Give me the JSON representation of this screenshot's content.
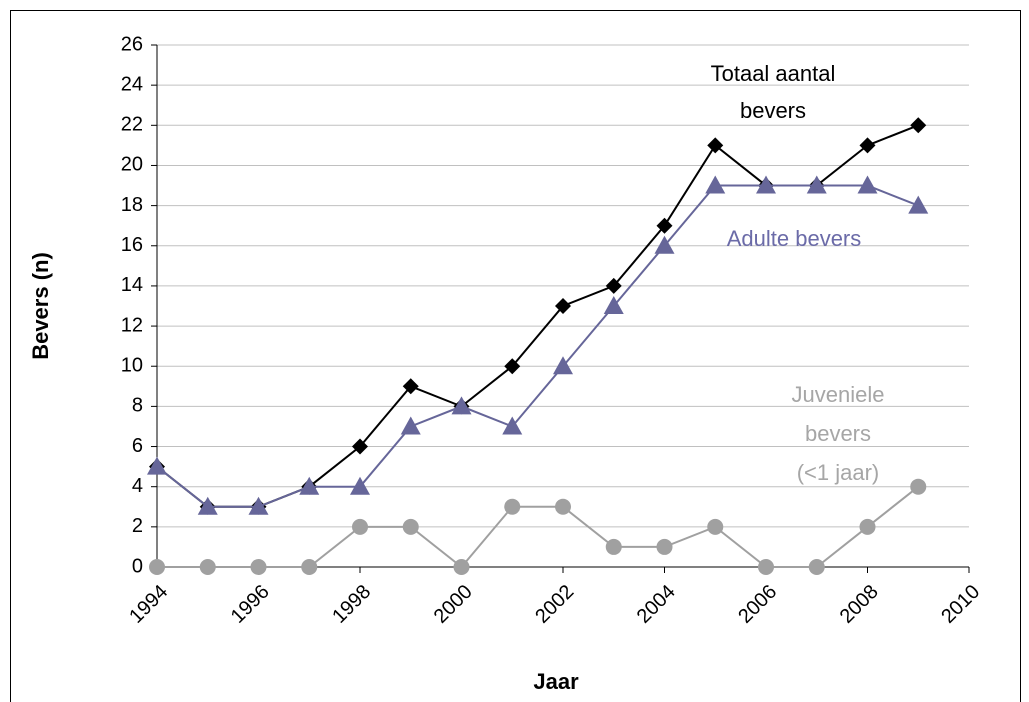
{
  "chart_data": {
    "type": "line",
    "xlabel": "Jaar",
    "ylabel": "Bevers (n)",
    "x": [
      1994,
      1995,
      1996,
      1997,
      1998,
      1999,
      2000,
      2001,
      2002,
      2003,
      2004,
      2005,
      2006,
      2007,
      2008,
      2009
    ],
    "series": [
      {
        "label_lines": [
          "Totaal aantal",
          "bevers"
        ],
        "color": "#000000",
        "marker": "diamond",
        "values": [
          5,
          3,
          3,
          4,
          6,
          9,
          8,
          10,
          13,
          14,
          17,
          21,
          19,
          19,
          21,
          22
        ]
      },
      {
        "label_lines": [
          "Adulte bevers"
        ],
        "color": "#666699",
        "marker": "triangle",
        "values": [
          5,
          3,
          3,
          4,
          4,
          7,
          8,
          7,
          10,
          13,
          16,
          19,
          19,
          19,
          19,
          18
        ]
      },
      {
        "label_lines": [
          "Juveniele",
          "bevers",
          "(<1 jaar)"
        ],
        "color": "#a0a0a0",
        "marker": "circle",
        "values": [
          0,
          0,
          0,
          0,
          2,
          2,
          0,
          3,
          3,
          1,
          1,
          2,
          0,
          0,
          2,
          4
        ]
      }
    ],
    "xlim": [
      1994,
      2010
    ],
    "xticks": [
      1994,
      1996,
      1998,
      2000,
      2002,
      2004,
      2006,
      2008,
      2010
    ],
    "ylim": [
      0,
      26
    ],
    "yticks": [
      0,
      2,
      4,
      6,
      8,
      10,
      12,
      14,
      16,
      18,
      20,
      22,
      24,
      26
    ],
    "grid": true
  }
}
